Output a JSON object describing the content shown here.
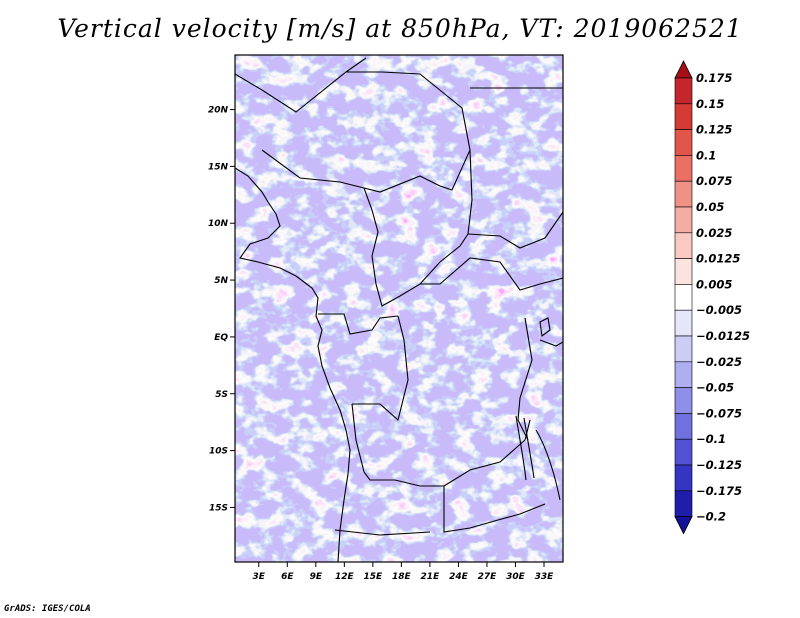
{
  "title": "Vertical velocity [m/s] at 850hPa, VT: 2019062521",
  "footer": "GrADS: IGES/COLA",
  "chart_data": {
    "type": "heatmap",
    "title": "Vertical velocity [m/s] at 850hPa, VT: 2019062521",
    "variable": "Vertical velocity",
    "units": "m/s",
    "level": "850hPa",
    "valid_time": "2019062521",
    "x_ticks": [
      "3E",
      "6E",
      "9E",
      "12E",
      "15E",
      "18E",
      "21E",
      "24E",
      "27E",
      "30E",
      "33E"
    ],
    "x_tick_values": [
      3,
      6,
      9,
      12,
      15,
      18,
      21,
      24,
      27,
      30,
      33
    ],
    "y_ticks": [
      "20N",
      "15N",
      "10N",
      "5N",
      "EQ",
      "5S",
      "10S",
      "15S"
    ],
    "y_tick_values": [
      20,
      15,
      10,
      5,
      0,
      -5,
      -10,
      -15
    ],
    "xlim": [
      0.5,
      35
    ],
    "ylim": [
      -19.8,
      24.8
    ],
    "colorbar": {
      "labels": [
        "0.175",
        "0.15",
        "0.125",
        "0.1",
        "0.075",
        "0.05",
        "0.025",
        "0.0125",
        "0.005",
        "−0.005",
        "−0.0125",
        "−0.025",
        "−0.05",
        "−0.075",
        "−0.1",
        "−0.125",
        "−0.175",
        "−0.2"
      ],
      "colors": [
        "#a50f15",
        "#c4262b",
        "#d63a35",
        "#e2554a",
        "#ea7064",
        "#f09185",
        "#f5aca3",
        "#f9c9c2",
        "#fde3df",
        "#ffffff",
        "#e6e6fb",
        "#ccccf5",
        "#aeaef0",
        "#8f8fe8",
        "#7070df",
        "#5252d4",
        "#3535c3",
        "#1e1eab",
        "#13139a"
      ],
      "extends": "both",
      "placement": "right"
    },
    "grid": false
  }
}
